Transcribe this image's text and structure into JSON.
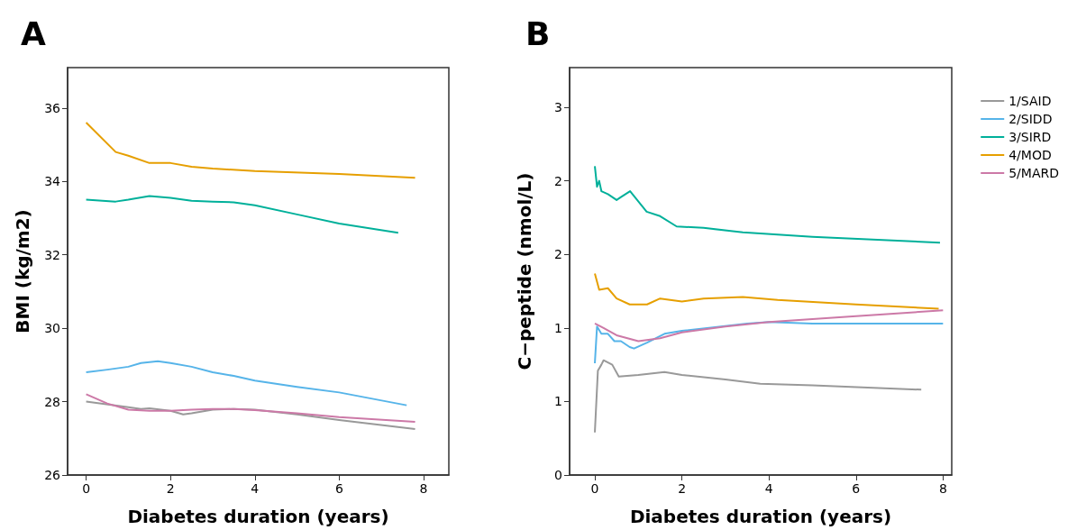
{
  "chart_data": [
    {
      "type": "line",
      "title": "A",
      "xlabel": "Diabetes duration (years)",
      "ylabel": "BMI (kg/m2)",
      "xlim": [
        -0.44,
        8.6
      ],
      "xticks": [
        0,
        2,
        4,
        6,
        8
      ],
      "ylim": [
        26,
        37.1
      ],
      "yticks": [
        26,
        28,
        30,
        32,
        34,
        36
      ],
      "grid": false,
      "legend": false,
      "marker": "none",
      "line_style": "solid",
      "series": [
        {
          "color": "#999999",
          "x": [
            0,
            1,
            1.3,
            1.5,
            2,
            2.3,
            2.5,
            3,
            3.5,
            4,
            5,
            6,
            7.8
          ],
          "values": [
            28.0,
            27.85,
            27.8,
            27.82,
            27.75,
            27.65,
            27.68,
            27.78,
            27.8,
            27.78,
            27.65,
            27.5,
            27.25
          ]
        },
        {
          "color": "#56b4e9",
          "x": [
            0,
            0.5,
            1,
            1.3,
            1.7,
            2,
            2.5,
            3,
            3.5,
            4,
            5,
            6,
            7.6
          ],
          "values": [
            28.8,
            28.87,
            28.95,
            29.05,
            29.1,
            29.05,
            28.95,
            28.8,
            28.7,
            28.57,
            28.4,
            28.25,
            27.9
          ]
        },
        {
          "color": "#00b09a",
          "x": [
            0,
            0.7,
            1,
            1.5,
            2,
            2.5,
            3,
            3.5,
            4,
            5,
            6,
            7.4
          ],
          "values": [
            33.5,
            33.45,
            33.5,
            33.6,
            33.55,
            33.47,
            33.45,
            33.43,
            33.35,
            33.1,
            32.85,
            32.6
          ]
        },
        {
          "color": "#e69f00",
          "x": [
            0,
            0.7,
            1,
            1.5,
            2,
            2.5,
            3,
            4,
            6,
            7.8
          ],
          "values": [
            35.6,
            34.8,
            34.7,
            34.5,
            34.5,
            34.4,
            34.35,
            34.28,
            34.2,
            34.1
          ]
        },
        {
          "color": "#cc79a7",
          "x": [
            0,
            0.5,
            1,
            1.5,
            2,
            2.5,
            3,
            3.5,
            4,
            5,
            6,
            7.8
          ],
          "values": [
            28.2,
            27.95,
            27.78,
            27.75,
            27.75,
            27.78,
            27.8,
            27.8,
            27.77,
            27.68,
            27.58,
            27.45
          ]
        }
      ]
    },
    {
      "type": "line",
      "title": "B",
      "xlabel": "Diabetes duration (years)",
      "ylabel": "C−peptide (nmol/L)",
      "xlim": [
        -0.58,
        8.2
      ],
      "xticks": [
        0,
        2,
        4,
        6,
        8
      ],
      "ylim": [
        0,
        2.77
      ],
      "yticks": [
        0,
        {
          "value": 0.5,
          "label": "1"
        },
        {
          "value": 1,
          "label": "1"
        },
        {
          "value": 1.5,
          "label": "2"
        },
        {
          "value": 2,
          "label": "2"
        },
        {
          "value": 2.5,
          "label": "3"
        }
      ],
      "grid": false,
      "legend": "right",
      "marker": "none",
      "line_style": "solid",
      "series": [
        {
          "name": "1/SAID",
          "color": "#999999",
          "x": [
            0,
            0.07,
            0.15,
            0.2,
            0.4,
            0.55,
            1,
            1.6,
            2,
            3,
            3.8,
            5,
            7.5
          ],
          "values": [
            0.29,
            0.71,
            0.75,
            0.78,
            0.75,
            0.67,
            0.68,
            0.7,
            0.68,
            0.65,
            0.62,
            0.61,
            0.58
          ]
        },
        {
          "name": "2/SIDD",
          "color": "#56b4e9",
          "x": [
            0,
            0.05,
            0.15,
            0.3,
            0.45,
            0.6,
            0.8,
            0.9,
            1.2,
            1.6,
            2,
            3.5,
            4,
            5,
            6,
            8
          ],
          "values": [
            0.76,
            1.01,
            0.96,
            0.96,
            0.91,
            0.91,
            0.87,
            0.86,
            0.9,
            0.96,
            0.98,
            1.03,
            1.04,
            1.03,
            1.03,
            1.03
          ]
        },
        {
          "name": "3/SIRD",
          "color": "#00b09a",
          "x": [
            0,
            0.05,
            0.1,
            0.15,
            0.3,
            0.5,
            0.6,
            0.81,
            1.19,
            1.5,
            1.88,
            2.5,
            3.4,
            5,
            7.93
          ],
          "values": [
            2.1,
            1.96,
            2.0,
            1.93,
            1.91,
            1.87,
            1.89,
            1.93,
            1.79,
            1.76,
            1.69,
            1.68,
            1.65,
            1.62,
            1.58
          ]
        },
        {
          "name": "4/MOD",
          "color": "#e69f00",
          "x": [
            0,
            0.1,
            0.3,
            0.5,
            0.8,
            1.2,
            1.5,
            2,
            2.5,
            3.4,
            4.2,
            6,
            7.9
          ],
          "values": [
            1.37,
            1.26,
            1.27,
            1.2,
            1.16,
            1.16,
            1.2,
            1.18,
            1.2,
            1.21,
            1.19,
            1.16,
            1.13
          ]
        },
        {
          "name": "5/MARD",
          "color": "#cc79a7",
          "x": [
            0,
            0.2,
            0.5,
            1,
            1.5,
            2,
            3,
            4,
            6,
            8
          ],
          "values": [
            1.03,
            1.0,
            0.95,
            0.91,
            0.93,
            0.97,
            1.01,
            1.04,
            1.08,
            1.12
          ]
        }
      ]
    }
  ]
}
